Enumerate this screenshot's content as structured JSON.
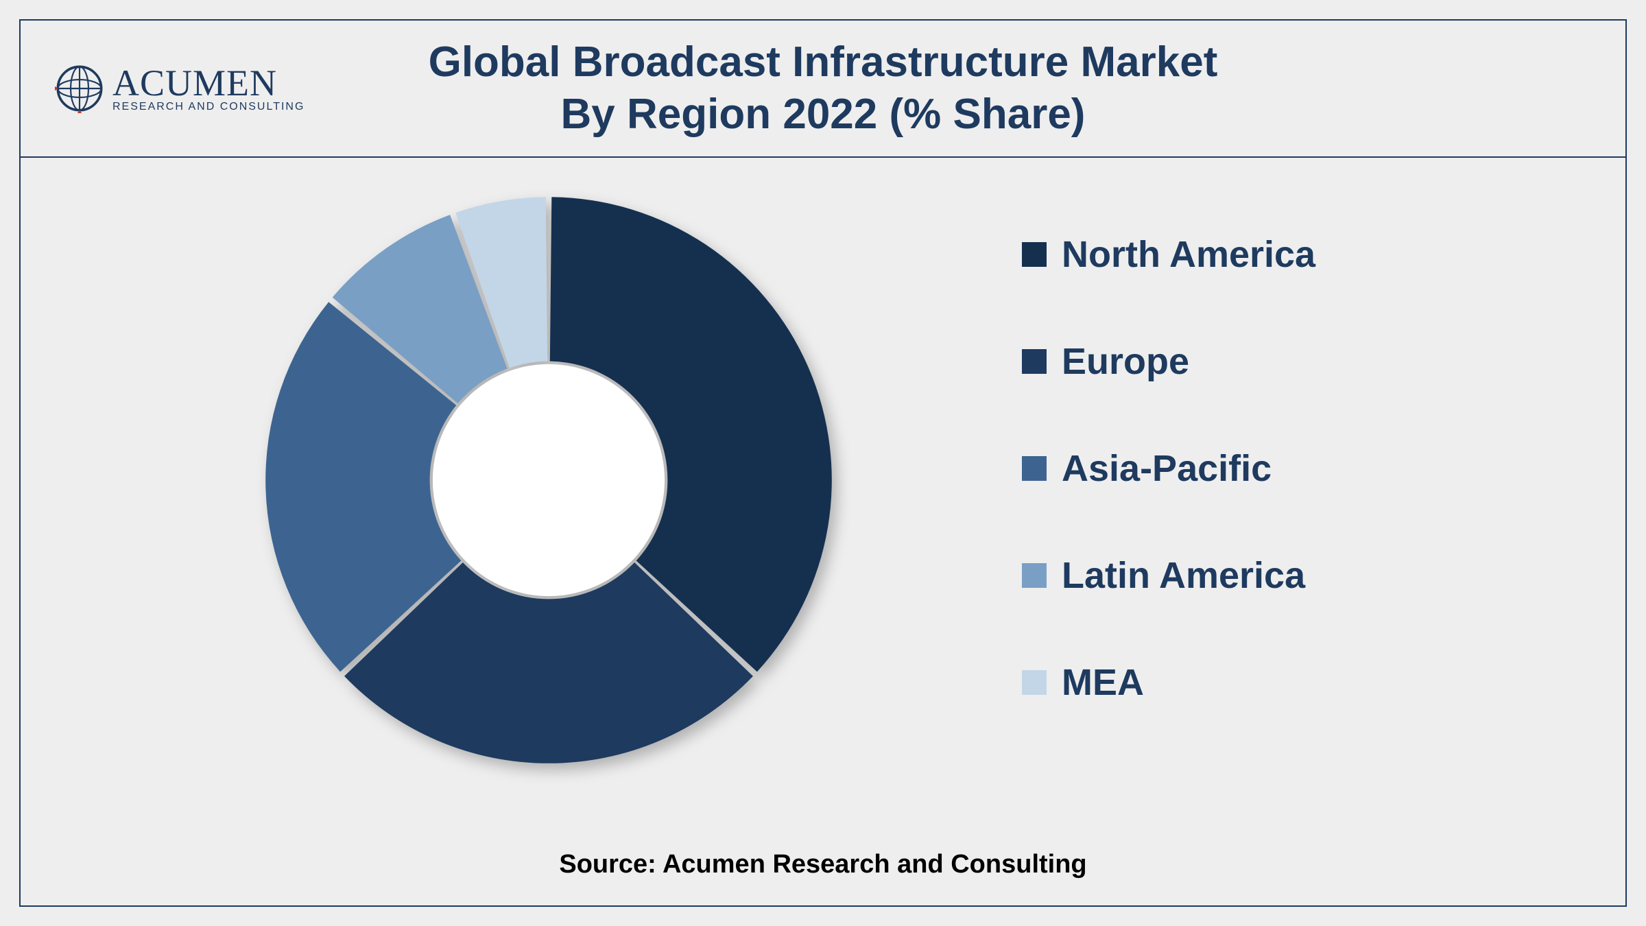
{
  "header": {
    "logo_main": "ACUMEN",
    "logo_sub": "RESEARCH AND CONSULTING",
    "title_line1": "Global Broadcast Infrastructure Market",
    "title_line2": "By Region 2022 (% Share)"
  },
  "chart": {
    "type": "donut",
    "inner_radius_ratio": 0.42,
    "background_color": "#eeeeee",
    "border_color": "#1e3a5f",
    "hole_color": "#ffffff",
    "gap_degrees": 1.2,
    "segments": [
      {
        "label": "North America",
        "value": 37,
        "color": "#15304f"
      },
      {
        "label": "Europe",
        "value": 26,
        "color": "#1e3a5f"
      },
      {
        "label": "Asia-Pacific",
        "value": 23,
        "color": "#3d6490"
      },
      {
        "label": "Latin America",
        "value": 8.5,
        "color": "#7a9fc5"
      },
      {
        "label": "MEA",
        "value": 5.5,
        "color": "#c3d6e8"
      }
    ]
  },
  "legend": {
    "label_fontsize": 54,
    "label_color": "#1e3a5f",
    "swatch_size": 36
  },
  "footer": {
    "source": "Source: Acumen Research and Consulting",
    "source_fontsize": 38,
    "source_color": "#000000"
  }
}
